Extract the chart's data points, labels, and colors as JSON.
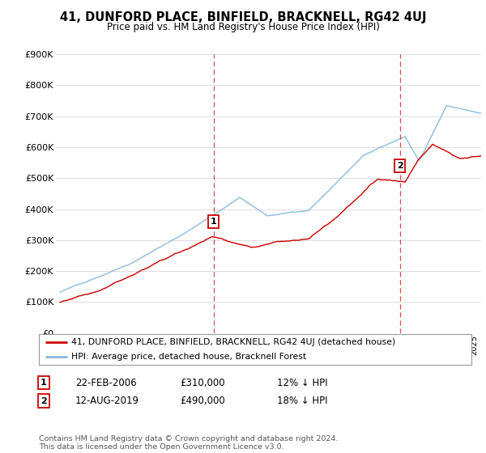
{
  "title": "41, DUNFORD PLACE, BINFIELD, BRACKNELL, RG42 4UJ",
  "subtitle": "Price paid vs. HM Land Registry's House Price Index (HPI)",
  "ylim": [
    0,
    900000
  ],
  "yticks": [
    0,
    100000,
    200000,
    300000,
    400000,
    500000,
    600000,
    700000,
    800000,
    900000
  ],
  "ytick_labels": [
    "£0",
    "£100K",
    "£200K",
    "£300K",
    "£400K",
    "£500K",
    "£600K",
    "£700K",
    "£800K",
    "£900K"
  ],
  "background_color": "#ffffff",
  "grid_color": "#dddddd",
  "sale1_year": 2006.13,
  "sale1_price": 310000,
  "sale2_year": 2019.62,
  "sale2_price": 490000,
  "red_line_color": "#cc0000",
  "blue_line_color": "#88bbdd",
  "vline_color": "#cc0000",
  "marker_box_color": "#cc0000",
  "legend_label_red": "41, DUNFORD PLACE, BINFIELD, BRACKNELL, RG42 4UJ (detached house)",
  "legend_label_blue": "HPI: Average price, detached house, Bracknell Forest",
  "footer": "Contains HM Land Registry data © Crown copyright and database right 2024.\nThis data is licensed under the Open Government Licence v3.0.",
  "table_row1": [
    "1",
    "22-FEB-2006",
    "£310,000",
    "12% ↓ HPI"
  ],
  "table_row2": [
    "2",
    "12-AUG-2019",
    "£490,000",
    "18% ↓ HPI"
  ]
}
